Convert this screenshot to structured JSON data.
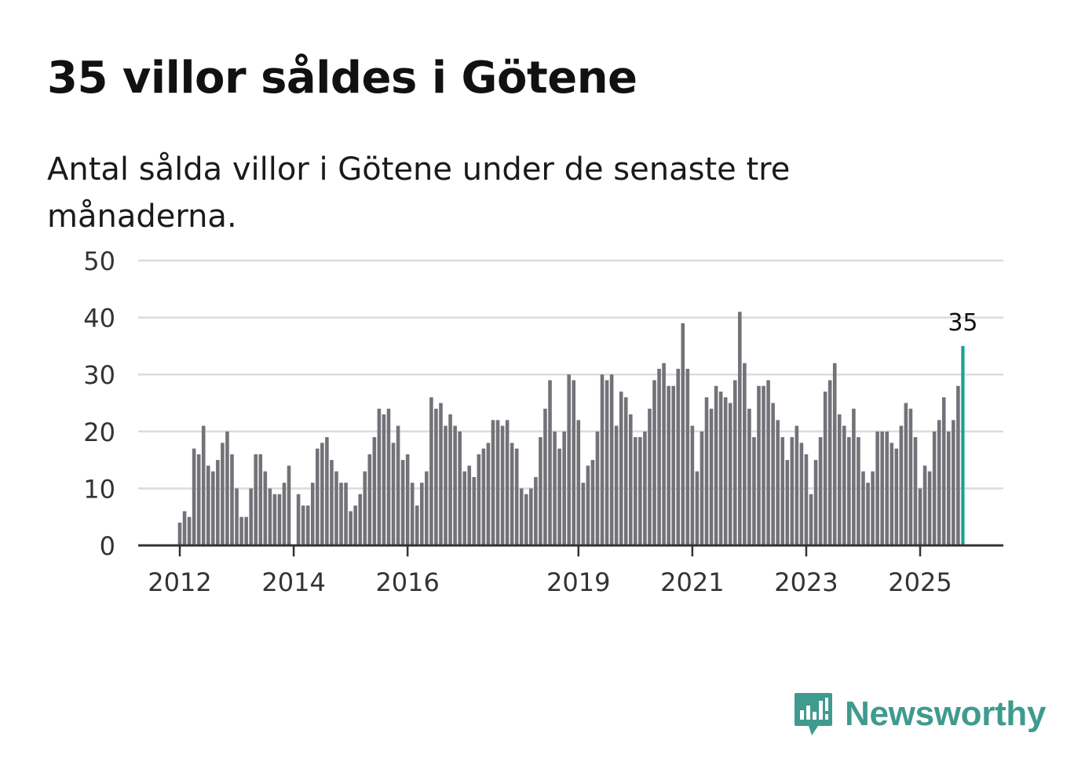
{
  "header": {
    "title": "35 villor såldes i Götene",
    "subtitle": "Antal sålda villor i Götene under de senaste tre månaderna."
  },
  "brand": {
    "name": "Newsworthy",
    "color": "#3f9a8f"
  },
  "chart_data": {
    "type": "bar",
    "x_start": "2012-01",
    "values": [
      4,
      6,
      5,
      17,
      16,
      21,
      14,
      13,
      15,
      18,
      20,
      16,
      10,
      5,
      5,
      10,
      16,
      16,
      13,
      10,
      9,
      9,
      11,
      14,
      0,
      9,
      7,
      7,
      11,
      17,
      18,
      19,
      15,
      13,
      11,
      11,
      6,
      7,
      9,
      13,
      16,
      19,
      24,
      23,
      24,
      18,
      21,
      15,
      16,
      11,
      7,
      11,
      13,
      26,
      24,
      25,
      21,
      23,
      21,
      20,
      13,
      14,
      12,
      16,
      17,
      18,
      22,
      22,
      21,
      22,
      18,
      17,
      10,
      9,
      10,
      12,
      19,
      24,
      29,
      20,
      17,
      20,
      30,
      29,
      22,
      11,
      14,
      15,
      20,
      30,
      29,
      30,
      21,
      27,
      26,
      23,
      19,
      19,
      20,
      24,
      29,
      31,
      32,
      28,
      28,
      31,
      39,
      31,
      21,
      13,
      20,
      26,
      24,
      28,
      27,
      26,
      25,
      29,
      41,
      32,
      24,
      19,
      28,
      28,
      29,
      25,
      22,
      19,
      15,
      19,
      21,
      18,
      16,
      9,
      15,
      19,
      27,
      29,
      32,
      23,
      21,
      19,
      24,
      19,
      13,
      11,
      13,
      20,
      20,
      20,
      18,
      17,
      21,
      25,
      24,
      19,
      10,
      14,
      13,
      20,
      22,
      26,
      20,
      22,
      28,
      35
    ],
    "yticks": [
      0,
      10,
      20,
      30,
      40,
      50
    ],
    "ylim": [
      0,
      50
    ],
    "xtick_labels": [
      "2012",
      "2014",
      "2016",
      "2019",
      "2021",
      "2023",
      "2025"
    ],
    "highlight_label": "35",
    "bar_color": "#737278",
    "highlight_color": "#18a195",
    "grid": true
  }
}
